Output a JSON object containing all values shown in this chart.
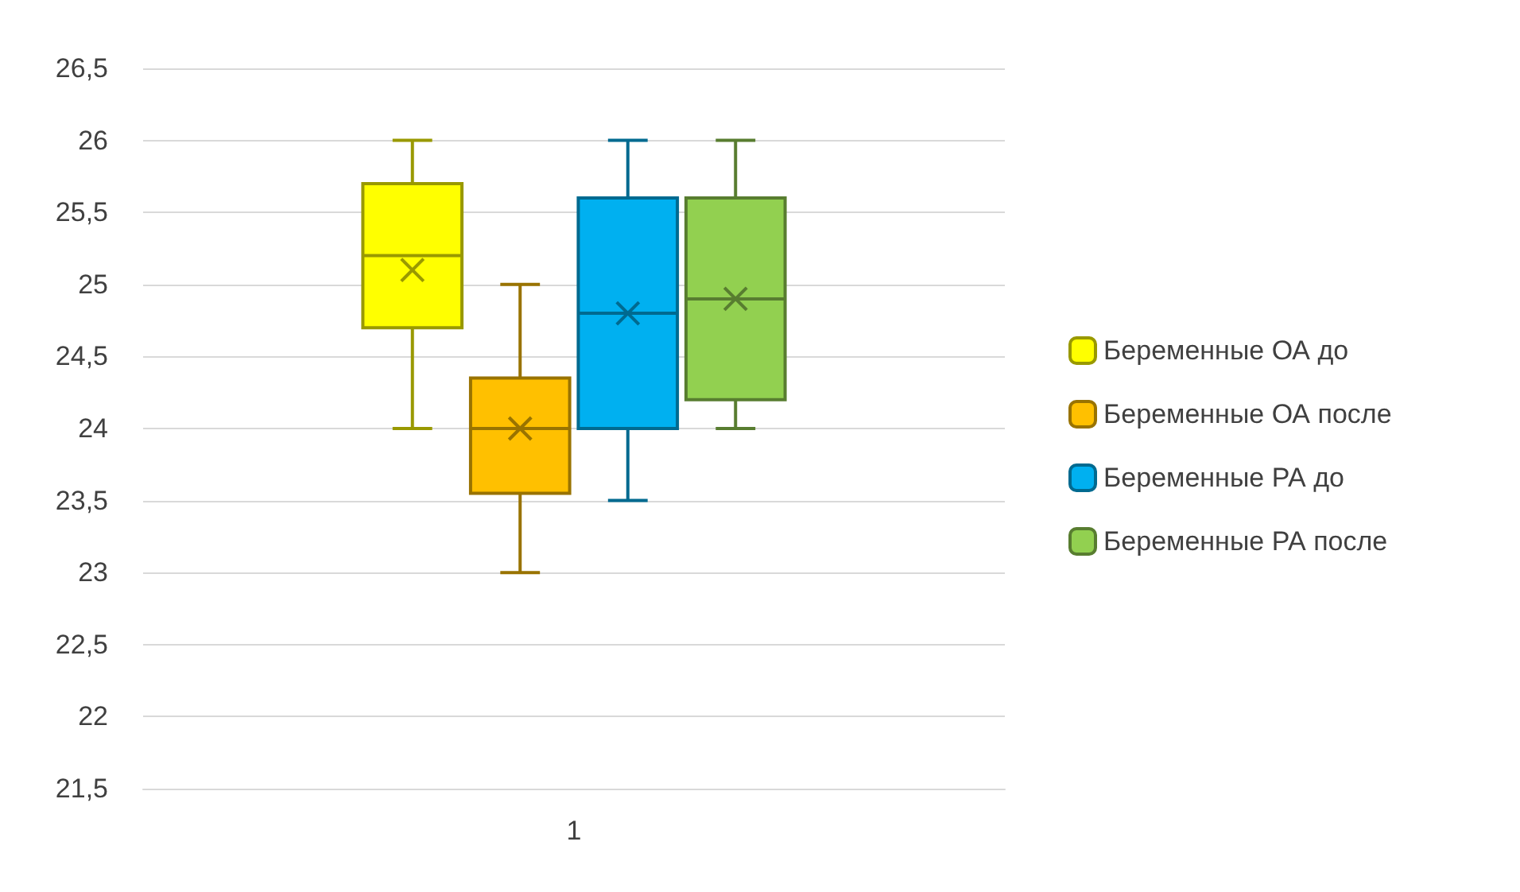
{
  "chart_data": {
    "type": "box",
    "categories": [
      "1"
    ],
    "series": [
      {
        "name": "Беременные ОА до",
        "color": "#ffff00",
        "boxes": [
          {
            "low": 24,
            "q1": 24.7,
            "median": 25.2,
            "q3": 25.7,
            "high": 26,
            "mean": 25.1
          }
        ]
      },
      {
        "name": "Беременные ОА после",
        "color": "#ffc000",
        "boxes": [
          {
            "low": 23,
            "q1": 23.55,
            "median": 24,
            "q3": 24.35,
            "high": 25,
            "mean": 24
          }
        ]
      },
      {
        "name": "Беременные РА до",
        "color": "#00b0f0",
        "boxes": [
          {
            "low": 23.5,
            "q1": 24,
            "median": 24.8,
            "q3": 25.6,
            "high": 26,
            "mean": 24.8
          }
        ]
      },
      {
        "name": "Беременные РА после",
        "color": "#92d050",
        "boxes": [
          {
            "low": 24,
            "q1": 24.2,
            "median": 24.9,
            "q3": 25.6,
            "high": 26,
            "mean": 24.9
          }
        ]
      }
    ],
    "ylim": [
      21.5,
      26.5
    ],
    "yticks": [
      {
        "value": 21.5,
        "label": "21,5"
      },
      22,
      {
        "value": 22.5,
        "label": "22,5"
      },
      23,
      {
        "value": 23.5,
        "label": "23,5"
      },
      24,
      {
        "value": 24.5,
        "label": "24,5"
      },
      25,
      {
        "value": 25.5,
        "label": "25,5"
      },
      26,
      {
        "value": 26.5,
        "label": "26,5"
      }
    ],
    "grid": "y",
    "legend": "right"
  }
}
